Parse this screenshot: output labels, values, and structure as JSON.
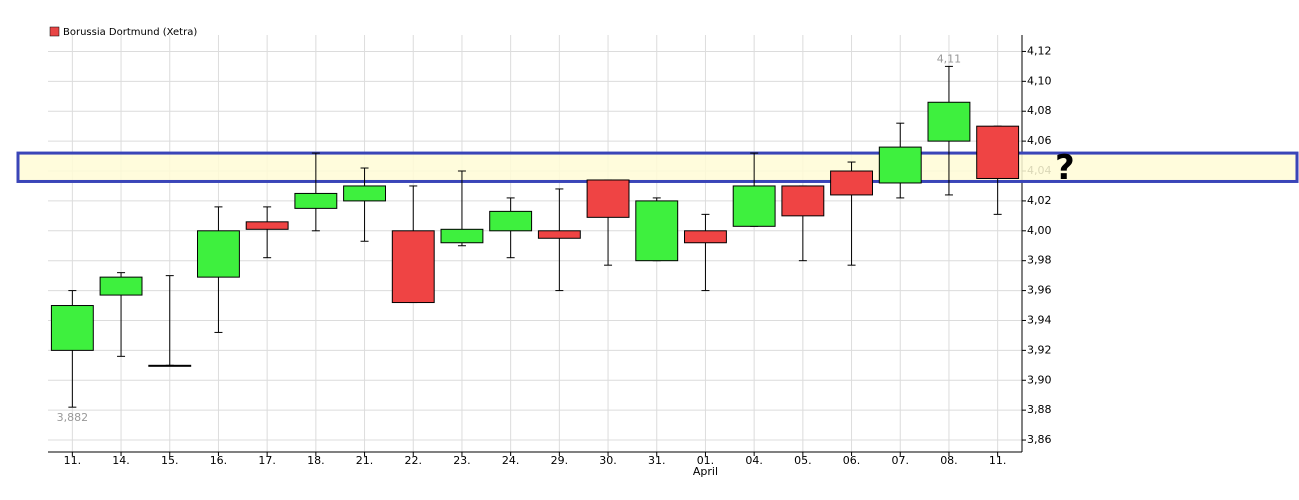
{
  "chart_data": {
    "type": "candlestick",
    "name": "Borussia Dortmund (Xetra)",
    "legend_color": "#e84545",
    "up_color": "#3ef03e",
    "down_color": "#ef4444",
    "categories": [
      "11.",
      "14.",
      "15.",
      "16.",
      "17.",
      "18.",
      "21.",
      "22.",
      "23.",
      "24.",
      "29.",
      "30.",
      "31.",
      "01.",
      "04.",
      "05.",
      "06.",
      "07.",
      "08.",
      "11."
    ],
    "months": [
      {
        "label": "April",
        "index": 13
      }
    ],
    "open": [
      3.92,
      3.957,
      3.91,
      3.969,
      4.006,
      4.015,
      4.02,
      4.0,
      3.992,
      4.0,
      4.0,
      4.034,
      3.98,
      4.0,
      4.003,
      4.03,
      4.04,
      4.032,
      4.06,
      4.07
    ],
    "high": [
      3.96,
      3.972,
      3.97,
      4.016,
      4.016,
      4.052,
      4.042,
      4.03,
      4.04,
      4.022,
      4.028,
      4.034,
      4.022,
      4.011,
      4.052,
      4.03,
      4.046,
      4.072,
      4.11,
      4.07
    ],
    "low": [
      3.882,
      3.916,
      3.91,
      3.932,
      3.982,
      4.0,
      3.993,
      3.952,
      3.99,
      3.982,
      3.96,
      3.977,
      3.98,
      3.96,
      4.003,
      3.98,
      3.977,
      4.022,
      4.024,
      4.011
    ],
    "close": [
      3.95,
      3.969,
      3.91,
      4.0,
      4.001,
      4.025,
      4.03,
      3.952,
      4.001,
      4.013,
      3.995,
      4.009,
      4.02,
      3.992,
      4.03,
      4.01,
      4.024,
      4.056,
      4.086,
      4.035
    ],
    "high_labels": {
      "18": "4,11"
    },
    "low_labels": {
      "0": "3,882"
    },
    "ylim": [
      3.852,
      4.131
    ],
    "yticks": [
      {
        "value": 3.86,
        "label": "3,86"
      },
      {
        "value": 3.88,
        "label": "3,88"
      },
      {
        "value": 3.9,
        "label": "3,90"
      },
      {
        "value": 3.92,
        "label": "3,92"
      },
      {
        "value": 3.94,
        "label": "3,94"
      },
      {
        "value": 3.96,
        "label": "3,96"
      },
      {
        "value": 3.98,
        "label": "3,98"
      },
      {
        "value": 4.0,
        "label": "4,00"
      },
      {
        "value": 4.02,
        "label": "4,02"
      },
      {
        "value": 4.04,
        "label": "4,04"
      },
      {
        "value": 4.06,
        "label": "4,06"
      },
      {
        "value": 4.08,
        "label": "4,08"
      },
      {
        "value": 4.1,
        "label": "4,10"
      },
      {
        "value": 4.12,
        "label": "4,12"
      }
    ],
    "grid": true,
    "highlight": {
      "ymin": 4.033,
      "ymax": 4.052,
      "label": "?",
      "fill": "#fffbd6",
      "stroke": "#3a45b8"
    }
  }
}
